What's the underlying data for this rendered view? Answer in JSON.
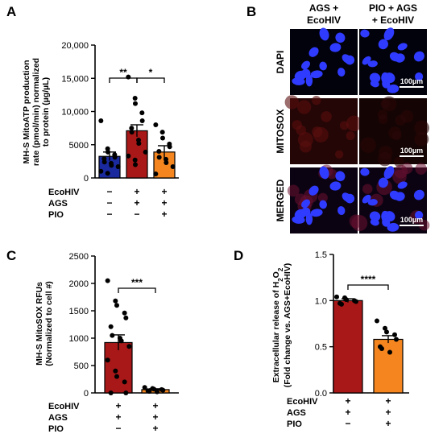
{
  "panels": {
    "A": {
      "letter": "A",
      "ylabel_lines": [
        "MH-S MitoATP production",
        "rate (pmol/min) normalized",
        "to protein (µg/µL)"
      ],
      "ytick_labels": [
        "0",
        "5000",
        "10,000",
        "15,000",
        "20,000"
      ],
      "ylim": [
        0,
        20000
      ],
      "factor_labels": [
        "EcoHIV",
        "AGS",
        "PIO"
      ],
      "factor_signs": [
        [
          "−",
          "+",
          "+"
        ],
        [
          "−",
          "+",
          "+"
        ],
        [
          "−",
          "−",
          "+"
        ]
      ],
      "sig": [
        {
          "label": "**",
          "from": 0,
          "to": 1
        },
        {
          "label": "*",
          "from": 1,
          "to": 2
        }
      ]
    },
    "B": {
      "letter": "B",
      "col_titles": [
        [
          "AGS +",
          "EcoHIV"
        ],
        [
          "PIO + AGS",
          "+ EcoHIV"
        ]
      ],
      "row_labels": [
        "DAPI",
        "MITOSOX",
        "MERGED"
      ],
      "scale_label": "100µm"
    },
    "C": {
      "letter": "C",
      "ylabel_lines": [
        "MH-S MitoSOX RFUs",
        "(Normalized to cell #)"
      ],
      "ytick_labels": [
        "0",
        "500",
        "1000",
        "1500",
        "2000",
        "2500"
      ],
      "ylim": [
        0,
        2500
      ],
      "factor_labels": [
        "EcoHIV",
        "AGS",
        "PIO"
      ],
      "factor_signs": [
        [
          "+",
          "+"
        ],
        [
          "+",
          "+"
        ],
        [
          "−",
          "+"
        ]
      ],
      "sig": [
        {
          "label": "***",
          "from": 0,
          "to": 1
        }
      ]
    },
    "D": {
      "letter": "D",
      "ylabel_line1_prefix": "Extracellular release of H",
      "ylabel_sub1": "2",
      "ylabel_mid": "O",
      "ylabel_sub2": "2",
      "ylabel_line2": "(Fold change vs. AGS+EcoHIV)",
      "ytick_labels": [
        "0.0",
        "0.5",
        "1.0",
        "1.5"
      ],
      "ylim": [
        0,
        1.5
      ],
      "factor_labels": [
        "EcoHIV",
        "AGS",
        "PIO"
      ],
      "factor_signs": [
        [
          "+",
          "+"
        ],
        [
          "+",
          "+"
        ],
        [
          "−",
          "+"
        ]
      ],
      "sig": [
        {
          "label": "****",
          "from": 0,
          "to": 1
        }
      ]
    }
  },
  "chart_data": [
    {
      "type": "bar",
      "panel": "A",
      "categories": [
        "EcoHIV−/AGS−/PIO−",
        "EcoHIV+/AGS+/PIO−",
        "EcoHIV+/AGS+/PIO+"
      ],
      "values": [
        3250,
        7100,
        3900
      ],
      "errors": [
        650,
        900,
        950
      ],
      "colors": [
        "#1a2a9e",
        "#a81818",
        "#f5861f"
      ],
      "points": [
        [
          8600,
          4400,
          3900,
          3500,
          3100,
          2900,
          2400,
          2200,
          1900,
          1700,
          1000,
          700
        ],
        [
          15200,
          12000,
          11200,
          9800,
          8600,
          7500,
          6900,
          5700,
          5200,
          3900,
          3300,
          2700,
          2000
        ],
        [
          8000,
          6900,
          6000,
          5100,
          4700,
          4000,
          3100,
          2800,
          2300,
          1700,
          600
        ]
      ],
      "ylim": [
        0,
        20000
      ]
    },
    {
      "type": "bar",
      "panel": "C",
      "categories": [
        "EcoHIV+/AGS+/PIO−",
        "EcoHIV+/AGS+/PIO+"
      ],
      "values": [
        920,
        60
      ],
      "errors": [
        140,
        15
      ],
      "colors": [
        "#a81818",
        "#f5861f"
      ],
      "points": [
        [
          2050,
          1680,
          1600,
          1460,
          1370,
          1210,
          1050,
          1000,
          950,
          850,
          600,
          400,
          300,
          200,
          0,
          0
        ],
        [
          100,
          80,
          70,
          60,
          50,
          40,
          30,
          20
        ]
      ],
      "ylim": [
        0,
        2500
      ]
    },
    {
      "type": "bar",
      "panel": "D",
      "categories": [
        "EcoHIV+/AGS+/PIO−",
        "EcoHIV+/AGS+/PIO+"
      ],
      "values": [
        1.0,
        0.58
      ],
      "errors": [
        0.02,
        0.04
      ],
      "colors": [
        "#a81818",
        "#f5861f"
      ],
      "points": [
        [
          1.04,
          1.03,
          1.01,
          1.0,
          0.99,
          0.97,
          0.96
        ],
        [
          0.78,
          0.7,
          0.66,
          0.63,
          0.58,
          0.5,
          0.48,
          0.44
        ]
      ],
      "ylim": [
        0,
        1.5
      ]
    }
  ]
}
